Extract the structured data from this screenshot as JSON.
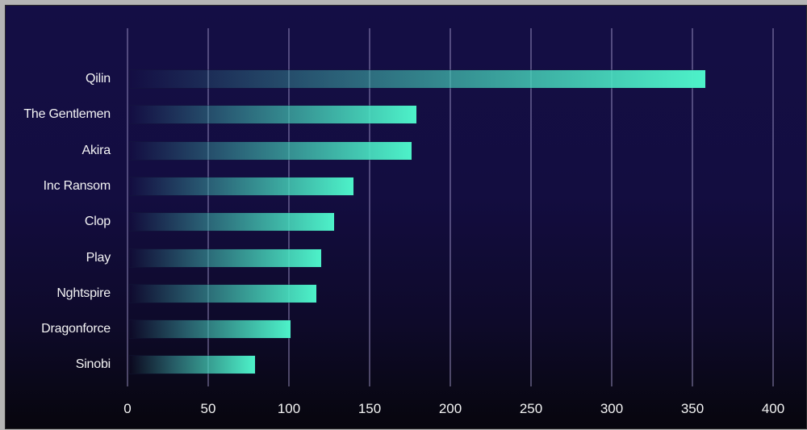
{
  "chart_data": {
    "type": "bar",
    "orientation": "horizontal",
    "title": "",
    "xlabel": "",
    "ylabel": "",
    "categories": [
      "Qilin",
      "The Gentlemen",
      "Akira",
      "Inc Ransom",
      "Clop",
      "Play",
      "Nghtspire",
      "Dragonforce",
      "Sinobi"
    ],
    "values": [
      358,
      179,
      176,
      140,
      128,
      120,
      117,
      101,
      79
    ],
    "xlim": [
      0,
      400
    ],
    "x_ticks": [
      "0",
      "50",
      "100",
      "150",
      "200",
      "250",
      "300",
      "350",
      "400"
    ],
    "grid": "vertical",
    "legend": null
  },
  "colors": {
    "bar_end": "#4df2c9",
    "background_top": "#140e45",
    "background_bottom": "#07060d",
    "text": "#f4f4f4"
  }
}
